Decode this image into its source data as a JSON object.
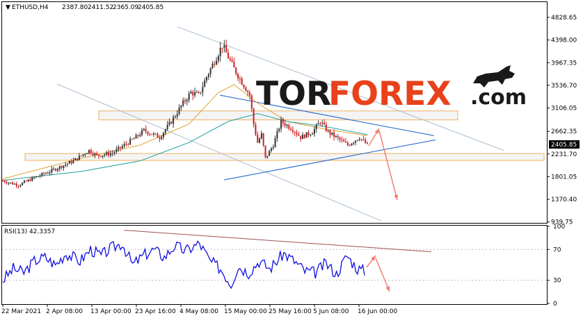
{
  "header": {
    "symbol": "ETHUSD,H4",
    "open": "2387.80",
    "high": "2411.52",
    "low": "2365.09",
    "close": "2405.85"
  },
  "logo": {
    "part1": "TOR",
    "part2": "FOREX",
    "part3": ".com"
  },
  "colors": {
    "bull": "#333333",
    "bear": "#cc1f1f",
    "ma_fast": "#e0a030",
    "ma_slow": "#20a0a0",
    "zone_fill": "#f4f4f4",
    "zone_stroke": "#f0b060",
    "channel": "#aabccd",
    "triangle": "#2f6fd0",
    "arrow": "#f08070",
    "rsi_line": "#1010e0",
    "rsi_trend": "#a05050"
  },
  "rsi": {
    "label": "RSI(13) 42.3357"
  },
  "chart_data": [
    {
      "type": "line",
      "subtype": "candlestick",
      "symbol": "ETHUSD",
      "timeframe": "H4",
      "price_axis_ticks": [
        "4828.65",
        "4398.00",
        "3967.35",
        "3536.70",
        "3106.05",
        "2662.35",
        "2231.70",
        "1801.05",
        "1370.40",
        "939.75"
      ],
      "last_price": "2405.85",
      "x_tick_labels": [
        "22 Mar 2021",
        "2 Apr 08:00",
        "13 Apr 00:00",
        "23 Apr 16:00",
        "4 May 08:00",
        "15 May 00:00",
        "25 May 16:00",
        "5 Jun 08:00",
        "16 Jun 00:00"
      ],
      "ylim": [
        939.75,
        4828.65
      ],
      "price_path_approx": [
        [
          0,
          1720
        ],
        [
          8,
          1640
        ],
        [
          16,
          1780
        ],
        [
          24,
          1900
        ],
        [
          30,
          2000
        ],
        [
          36,
          2100
        ],
        [
          44,
          2300
        ],
        [
          48,
          2200
        ],
        [
          56,
          2250
        ],
        [
          62,
          2400
        ],
        [
          68,
          2550
        ],
        [
          72,
          2680
        ],
        [
          80,
          2550
        ],
        [
          86,
          2850
        ],
        [
          92,
          3200
        ],
        [
          96,
          3400
        ],
        [
          100,
          3350
        ],
        [
          104,
          3700
        ],
        [
          108,
          4000
        ],
        [
          112,
          4300
        ],
        [
          114,
          4150
        ],
        [
          118,
          3850
        ],
        [
          122,
          3600
        ],
        [
          126,
          3350
        ],
        [
          128,
          2800
        ],
        [
          130,
          2450
        ],
        [
          132,
          2600
        ],
        [
          134,
          2150
        ],
        [
          138,
          2400
        ],
        [
          142,
          2850
        ],
        [
          148,
          2700
        ],
        [
          152,
          2550
        ],
        [
          158,
          2650
        ],
        [
          162,
          2850
        ],
        [
          166,
          2650
        ],
        [
          172,
          2500
        ],
        [
          176,
          2400
        ],
        [
          182,
          2550
        ],
        [
          186,
          2400
        ]
      ],
      "moving_averages": [
        {
          "color": "ma_fast",
          "path_approx": [
            [
              0,
              1760
            ],
            [
              40,
              2150
            ],
            [
              70,
              2400
            ],
            [
              95,
              2800
            ],
            [
              110,
              3400
            ],
            [
              118,
              3550
            ],
            [
              130,
              3200
            ],
            [
              145,
              2850
            ],
            [
              165,
              2700
            ],
            [
              186,
              2580
            ]
          ]
        },
        {
          "color": "ma_slow",
          "path_approx": [
            [
              0,
              1730
            ],
            [
              40,
              1900
            ],
            [
              70,
              2100
            ],
            [
              95,
              2450
            ],
            [
              115,
              2850
            ],
            [
              130,
              3000
            ],
            [
              145,
              2850
            ],
            [
              165,
              2750
            ],
            [
              186,
              2600
            ]
          ]
        }
      ],
      "annotations": [
        "support/resistance zone 2900-3050",
        "support/resistance zone 2100-2250",
        "descending channel",
        "symmetrical triangle",
        "forecast arrows: up to ~2750 then down to ~1400"
      ]
    },
    {
      "type": "line",
      "subtype": "oscillator",
      "name": "RSI(13)",
      "last_value": "42.3357",
      "y_ticks": [
        "100",
        "70",
        "30",
        "0"
      ],
      "ylim": [
        0,
        100
      ],
      "values_approx": [
        [
          0,
          30
        ],
        [
          6,
          45
        ],
        [
          12,
          40
        ],
        [
          18,
          55
        ],
        [
          24,
          60
        ],
        [
          30,
          50
        ],
        [
          36,
          65
        ],
        [
          44,
          55
        ],
        [
          50,
          70
        ],
        [
          56,
          62
        ],
        [
          62,
          72
        ],
        [
          68,
          78
        ],
        [
          74,
          50
        ],
        [
          80,
          62
        ],
        [
          86,
          70
        ],
        [
          92,
          60
        ],
        [
          98,
          75
        ],
        [
          104,
          68
        ],
        [
          112,
          78
        ],
        [
          118,
          55
        ],
        [
          124,
          45
        ],
        [
          130,
          25
        ],
        [
          134,
          48
        ],
        [
          140,
          40
        ],
        [
          146,
          55
        ],
        [
          152,
          45
        ],
        [
          160,
          65
        ],
        [
          166,
          55
        ],
        [
          172,
          42
        ],
        [
          178,
          40
        ],
        [
          184,
          52
        ],
        [
          190,
          38
        ],
        [
          196,
          62
        ],
        [
          202,
          45
        ],
        [
          206,
          42
        ]
      ]
    }
  ]
}
